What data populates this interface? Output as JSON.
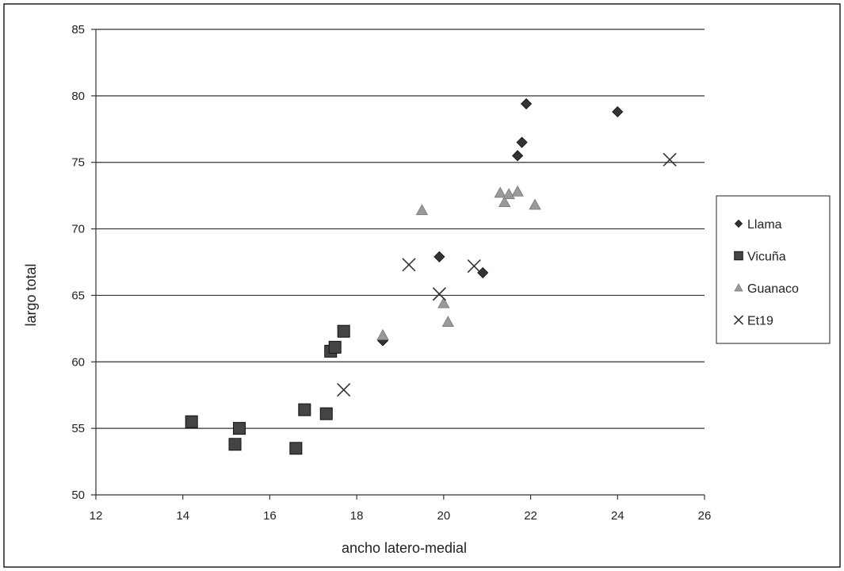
{
  "chart_data": {
    "type": "scatter",
    "title": "",
    "xlabel": "ancho latero-medial",
    "ylabel": "largo total",
    "xlim": [
      12,
      26
    ],
    "ylim": [
      50,
      85
    ],
    "x_ticks": [
      12,
      14,
      16,
      18,
      20,
      22,
      24,
      26
    ],
    "y_ticks": [
      50,
      55,
      60,
      65,
      70,
      75,
      80,
      85
    ],
    "grid": "horizontal",
    "legend_position": "right",
    "series": [
      {
        "name": "Llama",
        "marker": "diamond",
        "color": "#333333",
        "points": [
          [
            21.9,
            79.4
          ],
          [
            24.0,
            78.8
          ],
          [
            21.8,
            76.5
          ],
          [
            21.7,
            75.5
          ],
          [
            19.9,
            67.9
          ],
          [
            20.9,
            66.7
          ],
          [
            18.6,
            61.6
          ]
        ]
      },
      {
        "name": "Vicuña",
        "marker": "square",
        "color": "#444444",
        "points": [
          [
            14.2,
            55.5
          ],
          [
            15.2,
            53.8
          ],
          [
            15.3,
            55.0
          ],
          [
            16.6,
            53.5
          ],
          [
            16.8,
            56.4
          ],
          [
            17.3,
            56.1
          ],
          [
            17.4,
            60.8
          ],
          [
            17.5,
            61.1
          ],
          [
            17.7,
            62.3
          ]
        ]
      },
      {
        "name": "Guanaco",
        "marker": "triangle",
        "color": "#9a9a9a",
        "points": [
          [
            19.5,
            71.4
          ],
          [
            21.3,
            72.7
          ],
          [
            21.4,
            72.0
          ],
          [
            21.5,
            72.6
          ],
          [
            21.7,
            72.8
          ],
          [
            22.1,
            71.8
          ],
          [
            18.6,
            62.0
          ],
          [
            20.0,
            64.4
          ],
          [
            20.1,
            63.0
          ]
        ]
      },
      {
        "name": "Et19",
        "marker": "x",
        "color": "#333333",
        "points": [
          [
            25.2,
            75.2
          ],
          [
            19.2,
            67.3
          ],
          [
            20.7,
            67.2
          ],
          [
            19.9,
            65.1
          ],
          [
            17.7,
            57.9
          ]
        ]
      }
    ]
  }
}
